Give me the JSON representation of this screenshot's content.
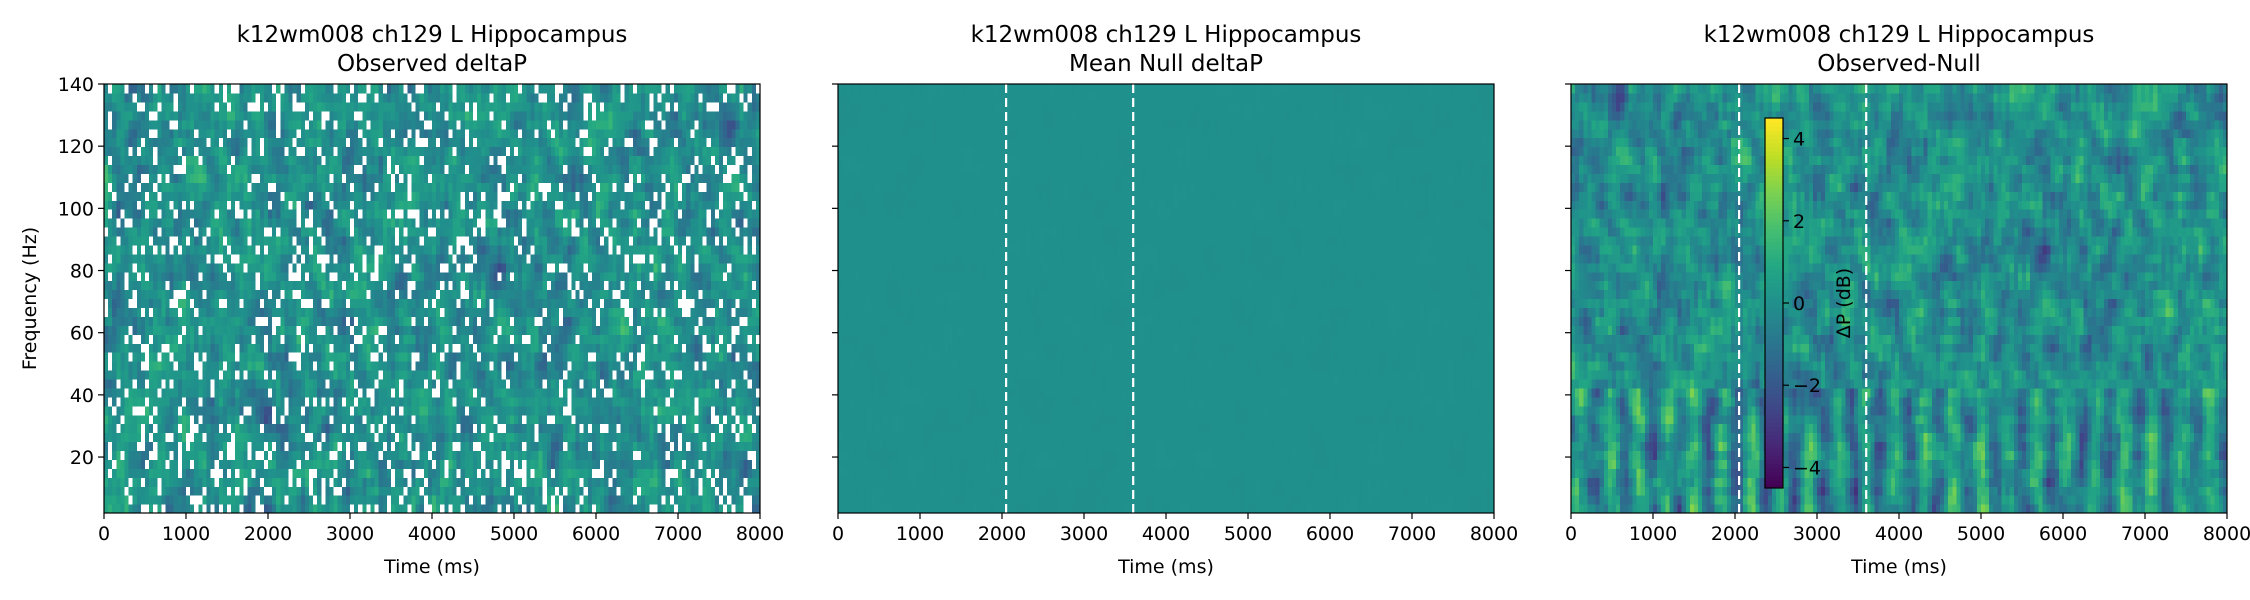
{
  "chart_data": [
    {
      "type": "heatmap",
      "title": "k12wm008 ch129 L Hippocampus",
      "subtitle": "Observed deltaP",
      "xlabel": "Time (ms)",
      "ylabel": "Frequency (Hz)",
      "xlim": [
        0,
        8000
      ],
      "ylim": [
        2,
        140
      ],
      "xticks": [
        "0",
        "1000",
        "2000",
        "3000",
        "4000",
        "5000",
        "6000",
        "7000",
        "8000"
      ],
      "yticks": [
        "20",
        "40",
        "60",
        "80",
        "100",
        "120",
        "140"
      ],
      "event_lines_ms": [],
      "colormap": "viridis",
      "value_range": [
        -4.5,
        4.5
      ],
      "masked_cells_color": "#ffffff"
    },
    {
      "type": "heatmap",
      "title": "k12wm008 ch129 L Hippocampus",
      "subtitle": "Mean Null deltaP",
      "xlabel": "Time (ms)",
      "ylabel": "",
      "xlim": [
        0,
        8000
      ],
      "ylim": [
        2,
        140
      ],
      "xticks": [
        "0",
        "1000",
        "2000",
        "3000",
        "4000",
        "5000",
        "6000",
        "7000",
        "8000"
      ],
      "yticks": [],
      "event_lines_ms": [
        2050,
        3600
      ],
      "colormap": "viridis",
      "value_range": [
        -4.5,
        4.5
      ]
    },
    {
      "type": "heatmap",
      "title": "k12wm008 ch129 L Hippocampus",
      "subtitle": "Observed-Null",
      "xlabel": "Time (ms)",
      "ylabel": "",
      "xlim": [
        0,
        8000
      ],
      "ylim": [
        2,
        140
      ],
      "xticks": [
        "0",
        "1000",
        "2000",
        "3000",
        "4000",
        "5000",
        "6000",
        "7000",
        "8000"
      ],
      "yticks": [],
      "event_lines_ms": [
        2050,
        3600
      ],
      "colormap": "viridis",
      "value_range": [
        -4.5,
        4.5
      ],
      "colorbar": {
        "label": "ΔP (dB)",
        "ticks": [
          4,
          2,
          0,
          -2,
          -4
        ],
        "tick_labels": [
          "4",
          "2",
          "0",
          "−2",
          "−4"
        ],
        "range": [
          -4.5,
          4.5
        ]
      }
    }
  ]
}
